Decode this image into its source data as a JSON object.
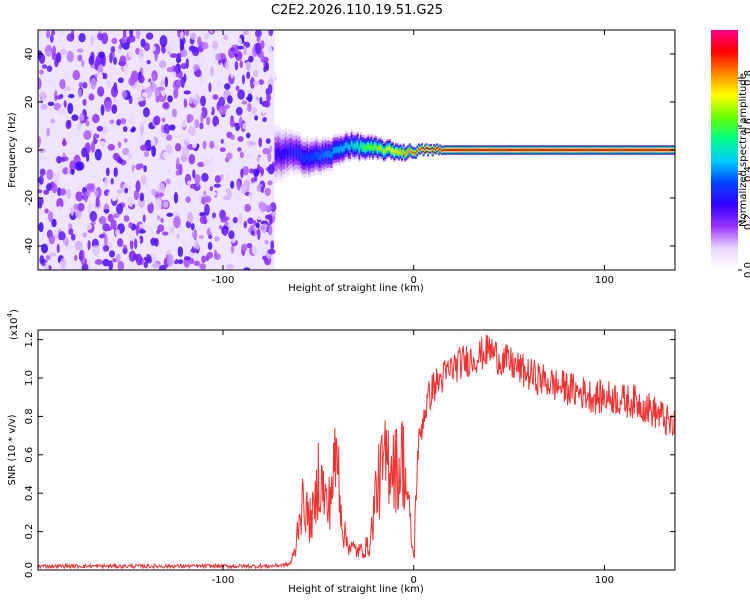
{
  "title": "C2E2.2026.110.19.51.G25",
  "chart_data": [
    {
      "type": "heatmap",
      "xlabel": "Height of straight line (km)",
      "ylabel": "Frequency (Hz)",
      "xlim": [
        -197,
        137
      ],
      "ylim": [
        -50,
        50
      ],
      "xticks": [
        -100,
        0,
        100
      ],
      "xtick_labels": [
        "-100",
        "0",
        "100"
      ],
      "yticks": [
        -40,
        -20,
        0,
        20,
        40
      ],
      "ytick_labels": [
        "-40",
        "-20",
        "0",
        "20",
        "40"
      ],
      "noise_region": {
        "x_range": [
          -197,
          -73
        ],
        "freq_range": [
          -50,
          50
        ],
        "typical_amplitude": 0.1
      },
      "ridge": [
        {
          "x": -73,
          "freq": -2,
          "width": 12,
          "amplitude": 0.25
        },
        {
          "x": -65,
          "freq": -1,
          "width": 9,
          "amplitude": 0.3
        },
        {
          "x": -55,
          "freq": -3,
          "width": 8,
          "amplitude": 0.35
        },
        {
          "x": -45,
          "freq": -2,
          "width": 7,
          "amplitude": 0.4
        },
        {
          "x": -35,
          "freq": 2,
          "width": 6,
          "amplitude": 0.45
        },
        {
          "x": -25,
          "freq": 1,
          "width": 5,
          "amplitude": 0.6
        },
        {
          "x": -15,
          "freq": 0,
          "width": 4,
          "amplitude": 0.7
        },
        {
          "x": -5,
          "freq": -1,
          "width": 3,
          "amplitude": 0.8
        },
        {
          "x": 5,
          "freq": 0,
          "width": 2,
          "amplitude": 0.9
        },
        {
          "x": 20,
          "freq": 0,
          "width": 2,
          "amplitude": 0.95
        },
        {
          "x": 137,
          "freq": 0,
          "width": 2,
          "amplitude": 0.95
        }
      ]
    },
    {
      "type": "colorbar",
      "label": "Normalized spectral amplitude",
      "range": [
        0,
        1
      ],
      "ticks": [
        0.0,
        0.2,
        0.4,
        0.6,
        0.8
      ],
      "tick_labels": [
        "0.0",
        "0.2",
        "0.4",
        "0.6",
        "0.8"
      ],
      "colormap": [
        "#ffffff",
        "#e8d8ff",
        "#9933ff",
        "#3300ff",
        "#0044ff",
        "#00ccff",
        "#00ff88",
        "#66ff00",
        "#ffff00",
        "#ff8800",
        "#ff0000",
        "#ff0088"
      ]
    },
    {
      "type": "line",
      "xlabel": "Height of straight line (km)",
      "ylabel": "SNR (10 * v/v)",
      "exponent_label": "(x10",
      "exponent_power": "4",
      "exponent_close": ")",
      "xlim": [
        -197,
        137
      ],
      "ylim": [
        0,
        1.25
      ],
      "xticks": [
        -100,
        0,
        100
      ],
      "xtick_labels": [
        "-100",
        "0",
        "100"
      ],
      "yticks": [
        0.0,
        0.2,
        0.4,
        0.6,
        0.8,
        1.0,
        1.2
      ],
      "ytick_labels": [
        "0.0",
        "0.2",
        "0.4",
        "0.6",
        "0.8",
        "1.0",
        "1.2"
      ],
      "color": "#ee3333",
      "series": [
        {
          "name": "SNR",
          "x": [
            -197,
            -150,
            -100,
            -75,
            -65,
            -62,
            -60,
            -57,
            -55,
            -52,
            -50,
            -47,
            -45,
            -43,
            -40,
            -37,
            -35,
            -33,
            -30,
            -27,
            -25,
            -23,
            -20,
            -17,
            -15,
            -12,
            -10,
            -8,
            -6,
            -4,
            -2,
            0,
            2,
            5,
            8,
            10,
            15,
            20,
            25,
            30,
            35,
            40,
            45,
            50,
            55,
            60,
            65,
            70,
            75,
            80,
            85,
            90,
            95,
            100,
            105,
            110,
            115,
            120,
            125,
            130,
            135,
            137
          ],
          "y": [
            0.02,
            0.02,
            0.02,
            0.02,
            0.03,
            0.1,
            0.3,
            0.35,
            0.25,
            0.3,
            0.5,
            0.4,
            0.3,
            0.45,
            0.6,
            0.2,
            0.15,
            0.12,
            0.1,
            0.1,
            0.12,
            0.12,
            0.4,
            0.5,
            0.55,
            0.6,
            0.55,
            0.5,
            0.6,
            0.45,
            0.25,
            0.05,
            0.6,
            0.8,
            0.9,
            0.95,
            1.0,
            1.05,
            1.08,
            1.1,
            1.12,
            1.15,
            1.1,
            1.08,
            1.05,
            1.02,
            1.0,
            0.98,
            0.96,
            0.95,
            0.93,
            0.92,
            0.9,
            0.9,
            0.9,
            0.88,
            0.88,
            0.86,
            0.83,
            0.8,
            0.75,
            0.74
          ]
        }
      ]
    }
  ]
}
